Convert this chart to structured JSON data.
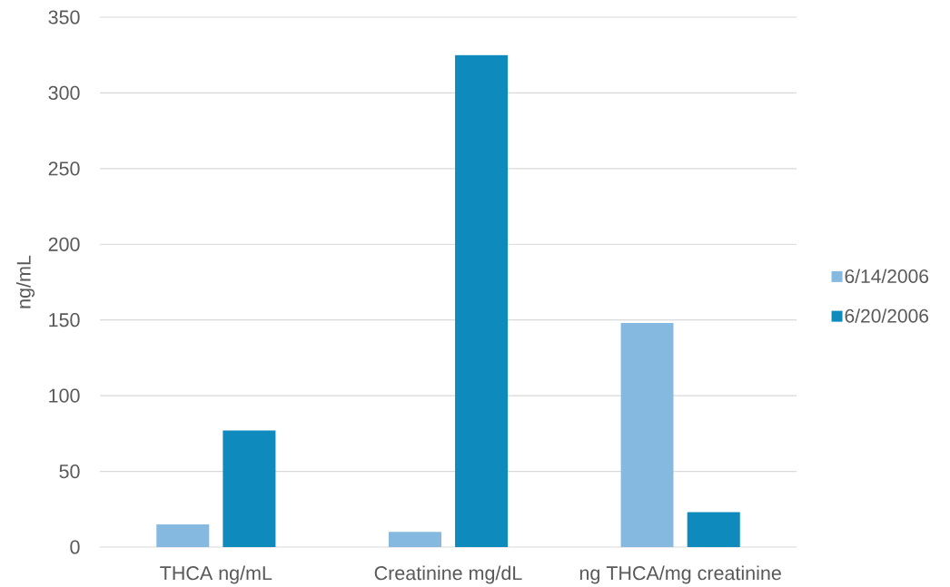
{
  "chart_data": {
    "type": "bar",
    "ylabel": "ng/mL",
    "categories": [
      "THCA ng/mL",
      "Creatinine mg/dL",
      "ng THCA/mg creatinine"
    ],
    "series": [
      {
        "name": "6/14/2006",
        "color": "#85b9df",
        "values": [
          15,
          10,
          148
        ]
      },
      {
        "name": "6/20/2006",
        "color": "#0e8abd",
        "values": [
          77,
          325,
          23
        ]
      }
    ],
    "ylim": [
      0,
      350
    ],
    "yticks": [
      0,
      50,
      100,
      150,
      200,
      250,
      300,
      350
    ],
    "grid": "y",
    "legend": "right"
  }
}
